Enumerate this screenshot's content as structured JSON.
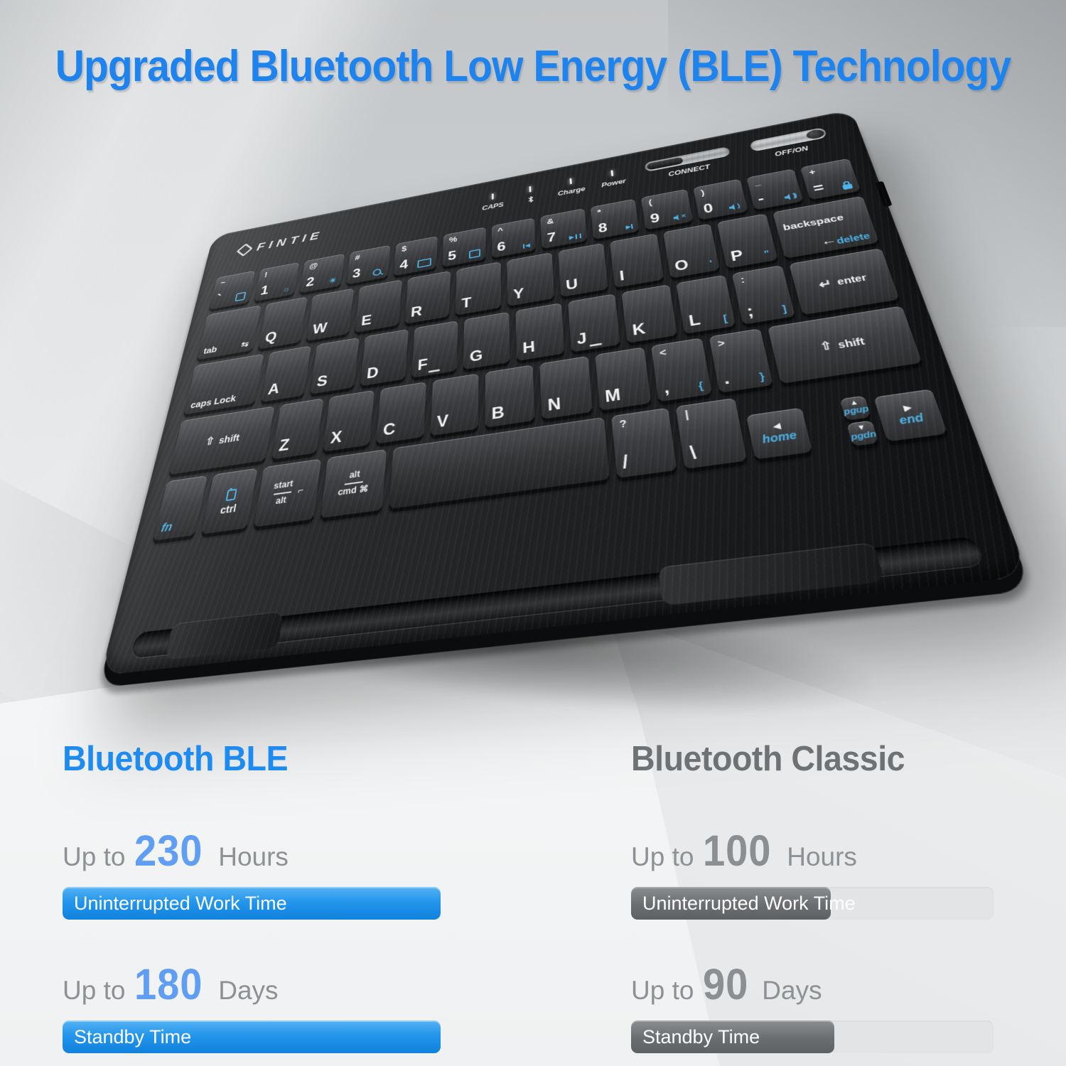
{
  "title": "Upgraded Bluetooth Low Energy (BLE) Technology",
  "colors": {
    "title_blue": "#1f83ee",
    "heading_blue": "#1e8bf1",
    "heading_gray": "#6e7275",
    "bar_blue": "#1b87e4",
    "bar_gray": "#6b6e71",
    "key_legend_blue": "#4fb3e8"
  },
  "keyboard": {
    "brand": {
      "name": "FINTIE",
      "logo_icon": "fintie-diamond-icon"
    },
    "indicators": [
      {
        "label": "CAPS"
      },
      {
        "label": "Bluetooth",
        "icon": "bluetooth-icon"
      },
      {
        "label": "Charge"
      },
      {
        "label": "Power"
      }
    ],
    "connect_label": "CONNECT",
    "power_label": "OFF/ON",
    "rows": [
      [
        {
          "t": "~",
          "m": "`",
          "i": "home-screen"
        },
        {
          "t": "!",
          "m": "1",
          "i": "brightness-down"
        },
        {
          "t": "@",
          "m": "2",
          "i": "brightness-up"
        },
        {
          "t": "#",
          "m": "3",
          "i": "search"
        },
        {
          "t": "$",
          "m": "4",
          "i": "virtual-keyboard"
        },
        {
          "t": "%",
          "m": "5",
          "i": "screenshot"
        },
        {
          "t": "^",
          "m": "6",
          "i": "prev-track"
        },
        {
          "t": "&",
          "m": "7",
          "i": "play-pause"
        },
        {
          "t": "*",
          "m": "8",
          "i": "next-track"
        },
        {
          "t": "(",
          "m": "9",
          "i": "mute"
        },
        {
          "t": ")",
          "m": "0",
          "i": "volume-down"
        },
        {
          "t": "_",
          "m": "-",
          "i": "volume-up"
        },
        {
          "t": "+",
          "m": "=",
          "i": "lock"
        }
      ],
      [
        {
          "m": "tab",
          "i": "tab-arrows",
          "w": 1.35,
          "c": "fkey"
        },
        {
          "m": "Q"
        },
        {
          "m": "W"
        },
        {
          "m": "E"
        },
        {
          "m": "R"
        },
        {
          "m": "T"
        },
        {
          "m": "Y"
        },
        {
          "m": "U"
        },
        {
          "m": "I"
        },
        {
          "m": "O",
          "s": "'"
        },
        {
          "m": "P",
          "s": "\""
        },
        {
          "m": "backspace",
          "s": "delete",
          "i": "backspace-arrow",
          "w": 1.8,
          "c": "fkey bks"
        }
      ],
      [
        {
          "m": "caps Lock",
          "w": 1.7,
          "c": "fkey"
        },
        {
          "m": "A"
        },
        {
          "m": "S"
        },
        {
          "m": "D"
        },
        {
          "m": "F",
          "h": true
        },
        {
          "m": "G"
        },
        {
          "m": "H"
        },
        {
          "m": "J",
          "h": true
        },
        {
          "m": "K"
        },
        {
          "m": "L",
          "s": "["
        },
        {
          "t": ":",
          "m": ";",
          "s": "]"
        },
        {
          "m": "enter",
          "i": "enter-arrow",
          "w": 1.8,
          "c": "fkey ent"
        }
      ],
      [
        {
          "m": "shift",
          "i": "shift-arrow",
          "w": 2.2,
          "c": "fkey sft"
        },
        {
          "m": "Z"
        },
        {
          "m": "X"
        },
        {
          "m": "C"
        },
        {
          "m": "V"
        },
        {
          "m": "B"
        },
        {
          "m": "N"
        },
        {
          "m": "M"
        },
        {
          "t": "<",
          "m": ",",
          "s": "{"
        },
        {
          "t": ">",
          "m": ".",
          "s": "}"
        },
        {
          "m": "shift",
          "i": "shift-arrow",
          "w": 2.5,
          "c": "fkey sft"
        }
      ],
      [
        {
          "m": "fn",
          "c": "fkey blue",
          "w": 0.85
        },
        {
          "m": "ctrl",
          "i": "battery",
          "c": "fkey ctl",
          "w": 0.9
        },
        {
          "m2": [
            "start",
            "alt"
          ],
          "i": "menu",
          "c": "fkey dual",
          "w": 1.15
        },
        {
          "m2": [
            "alt",
            "cmd ⌘"
          ],
          "c": "fkey dual",
          "w": 1.15
        },
        {
          "m": "",
          "c": "space",
          "w": 3.9
        },
        {
          "t": "?",
          "m": "/",
          "w": 1.0
        },
        {
          "t": "|",
          "m": "\\",
          "w": 1.0
        },
        {
          "m": "home",
          "a": "◀",
          "c": "fkey nav",
          "w": 0.9
        },
        {
          "stack": [
            {
              "m": "pgup",
              "a": "▲"
            },
            {
              "m": "pgdn",
              "a": "▼"
            }
          ],
          "w": 0.9
        },
        {
          "m": "end",
          "a": "▶",
          "c": "fkey nav",
          "w": 0.9
        }
      ]
    ]
  },
  "comparison": {
    "ble": {
      "heading": "Bluetooth BLE",
      "stats": [
        {
          "prefix": "Up to",
          "value": "230",
          "unit": "Hours",
          "bar_label": "Uninterrupted Work Time",
          "fill_percent": 100
        },
        {
          "prefix": "Up to",
          "value": "180",
          "unit": "Days",
          "bar_label": "Standby Time",
          "fill_percent": 100
        }
      ]
    },
    "classic": {
      "heading": "Bluetooth Classic",
      "stats": [
        {
          "prefix": "Up to",
          "value": "100",
          "unit": "Hours",
          "bar_label": "Uninterrupted Work Time",
          "fill_percent": 55
        },
        {
          "prefix": "Up to",
          "value": "90",
          "unit": "Days",
          "bar_label": "Standby Time",
          "fill_percent": 56
        }
      ]
    }
  }
}
